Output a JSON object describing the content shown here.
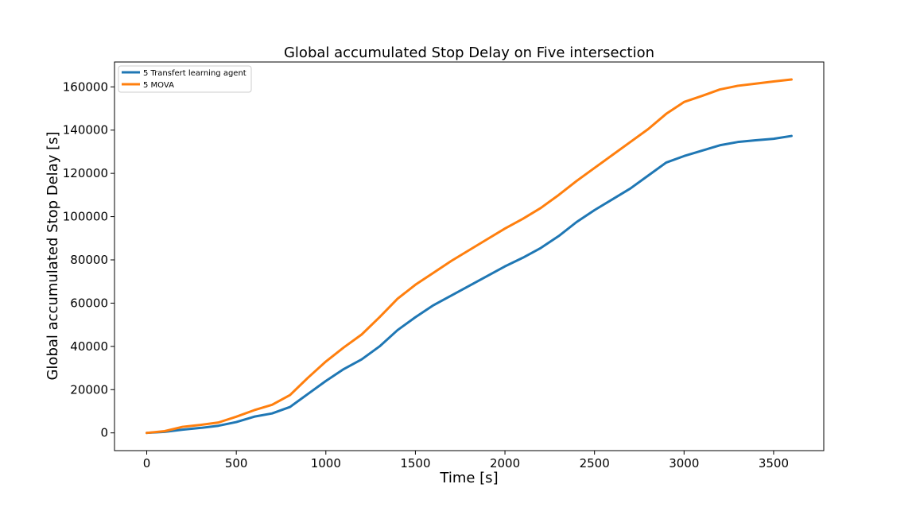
{
  "chart_data": {
    "type": "line",
    "title": "Global accumulated Stop Delay on Five intersection",
    "xlabel": "Time [s]",
    "ylabel": "Global accumulated Stop Delay [s]",
    "xlim": [
      -180,
      3780
    ],
    "ylim": [
      -8200,
      171500
    ],
    "xticks": [
      0,
      500,
      1000,
      1500,
      2000,
      2500,
      3000,
      3500
    ],
    "yticks": [
      0,
      20000,
      40000,
      60000,
      80000,
      100000,
      120000,
      140000,
      160000
    ],
    "grid": false,
    "legend_position": "top-left",
    "series": [
      {
        "name": "5 Transfert learning agent",
        "color": "#1f77b4",
        "x": [
          0,
          100,
          200,
          300,
          400,
          500,
          600,
          700,
          800,
          900,
          1000,
          1100,
          1200,
          1300,
          1400,
          1500,
          1600,
          1700,
          1800,
          1900,
          2000,
          2100,
          2200,
          2300,
          2400,
          2500,
          2600,
          2700,
          2800,
          2900,
          3000,
          3100,
          3200,
          3300,
          3400,
          3500,
          3600
        ],
        "y": [
          0,
          500,
          1500,
          2300,
          3300,
          5000,
          7500,
          9000,
          12000,
          18000,
          24000,
          29500,
          34000,
          40000,
          47500,
          53500,
          59000,
          63500,
          68000,
          72500,
          77000,
          81000,
          85500,
          91000,
          97500,
          103000,
          108000,
          113000,
          119000,
          125000,
          128000,
          130500,
          133000,
          134500,
          135300,
          136000,
          137300
        ]
      },
      {
        "name": "5 MOVA",
        "color": "#ff7f0e",
        "x": [
          0,
          100,
          200,
          300,
          400,
          500,
          600,
          700,
          800,
          900,
          1000,
          1100,
          1200,
          1300,
          1400,
          1500,
          1600,
          1700,
          1800,
          1900,
          2000,
          2100,
          2200,
          2300,
          2400,
          2500,
          2600,
          2700,
          2800,
          2900,
          3000,
          3100,
          3200,
          3300,
          3400,
          3500,
          3600
        ],
        "y": [
          0,
          800,
          2800,
          3700,
          4800,
          7500,
          10500,
          13000,
          17500,
          25500,
          33000,
          39500,
          45500,
          53500,
          62000,
          68500,
          74000,
          79500,
          84500,
          89500,
          94500,
          99000,
          104000,
          110000,
          116500,
          122500,
          128500,
          134500,
          140500,
          147500,
          153000,
          155800,
          158800,
          160500,
          161500,
          162500,
          163400
        ]
      }
    ]
  }
}
